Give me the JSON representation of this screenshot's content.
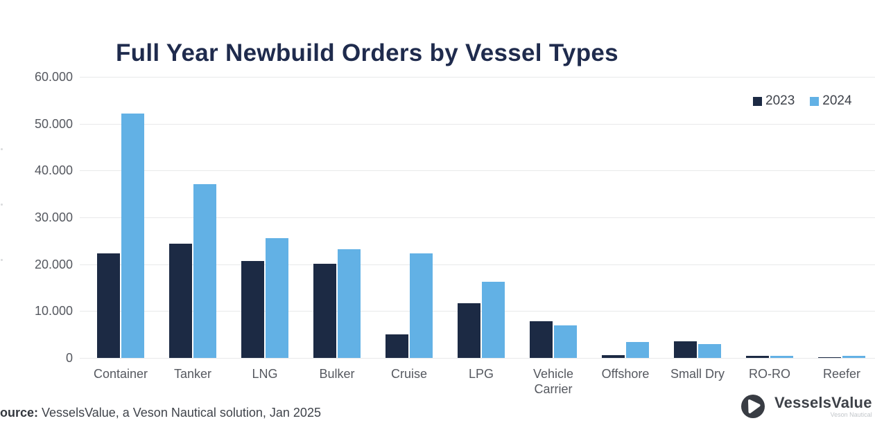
{
  "chart": {
    "title": "Full Year Newbuild Orders by Vessel Types",
    "legend": [
      "2023",
      "2024"
    ]
  },
  "chart_data": {
    "type": "bar",
    "title": "Full Year Newbuild Orders by Vessel Types",
    "categories": [
      "Container",
      "Tanker",
      "LNG",
      "Bulker",
      "Cruise",
      "LPG",
      "Vehicle Carrier",
      "Offshore",
      "Small Dry",
      "RO-RO",
      "Reefer"
    ],
    "series": [
      {
        "name": "2023",
        "color": "#1c2a44",
        "values": [
          22300,
          24400,
          20700,
          20100,
          5100,
          11700,
          7900,
          600,
          3600,
          500,
          100
        ]
      },
      {
        "name": "2024",
        "color": "#62b1e5",
        "values": [
          52200,
          37100,
          25500,
          23200,
          22300,
          16300,
          6900,
          3400,
          2900,
          400,
          400
        ]
      }
    ],
    "xlabel": "",
    "ylabel": "",
    "ylim": [
      0,
      60000
    ],
    "y_ticks": [
      "60.000",
      "50.000",
      "40.000",
      "30.000",
      "20.000",
      "10.000",
      "0"
    ],
    "y_tick_values": [
      60000,
      50000,
      40000,
      30000,
      20000,
      10000,
      0
    ],
    "grid": "horizontal",
    "legend_position": "top-right"
  },
  "source": {
    "prefix": "ource:",
    "text": "VesselsValue, a Veson Nautical solution, Jan 2025"
  },
  "logo": {
    "brand": "VesselsValue",
    "sub": "Veson Nautical"
  },
  "colors": {
    "background": "#ffffff",
    "title": "#1f2b4d",
    "axis_text": "#55585f",
    "gridline": "#e8e9ea",
    "series_2023": "#1c2a44",
    "series_2024": "#62b1e5"
  }
}
